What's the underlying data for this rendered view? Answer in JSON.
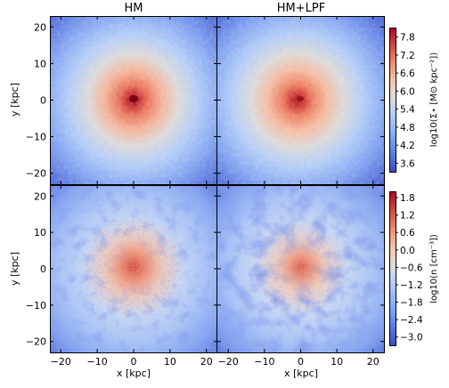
{
  "chart_data": [
    {
      "type": "heatmap",
      "panel": "top-left",
      "title": "HM",
      "quantity": "stellar surface density",
      "xlim": [
        -23,
        23
      ],
      "ylim": [
        -23,
        23
      ],
      "ylabel": "y [kpc]",
      "yticks": [
        -20,
        -10,
        0,
        10,
        20
      ],
      "center": [
        0,
        0
      ],
      "peak_log_sigma": 7.8,
      "edge_log_sigma": 3.5,
      "colors": {
        "core": "#b2182b",
        "edge": "#3e5fcf"
      }
    },
    {
      "type": "heatmap",
      "panel": "top-right",
      "title": "HM+LPF",
      "quantity": "stellar surface density",
      "xlim": [
        -23,
        23
      ],
      "ylim": [
        -23,
        23
      ],
      "center": [
        -1,
        0
      ],
      "peak_log_sigma": 7.6,
      "edge_log_sigma": 3.5,
      "colors": {
        "core": "#b2182b",
        "edge": "#3e5fcf"
      }
    },
    {
      "type": "heatmap",
      "panel": "bottom-left",
      "title": "",
      "quantity": "gas number density",
      "xlim": [
        -23,
        23
      ],
      "ylim": [
        -23,
        23
      ],
      "xlabel": "x [kpc]",
      "ylabel": "y [kpc]",
      "xticks": [
        -20,
        -10,
        0,
        10,
        20
      ],
      "yticks": [
        -20,
        -10,
        0,
        10,
        20
      ],
      "structure": "spiral gas disk",
      "log_n_range": [
        -3.3,
        2.0
      ]
    },
    {
      "type": "heatmap",
      "panel": "bottom-right",
      "title": "",
      "quantity": "gas number density",
      "xlim": [
        -23,
        23
      ],
      "ylim": [
        -23,
        23
      ],
      "xlabel": "x [kpc]",
      "xticks": [
        -20,
        -10,
        0,
        10,
        20
      ],
      "structure": "spiral gas disk, more diffuse",
      "log_n_range": [
        -3.3,
        2.0
      ]
    }
  ],
  "titles": {
    "left": "HM",
    "right": "HM+LPF"
  },
  "axes": {
    "xlabel": "x [kpc]",
    "ylabel": "y [kpc]",
    "ticks": [
      "-20",
      "−10",
      "0",
      "10",
      "20"
    ],
    "yticks": [
      "−20",
      "−10",
      "0",
      "10",
      "20"
    ],
    "xticks_left": [
      "−20",
      "−10",
      "0",
      "10",
      "20"
    ],
    "xticks_right": [
      "−20",
      "−10",
      "0",
      "10",
      "20"
    ]
  },
  "colorbars": {
    "top": {
      "label": "log10(Σ⋆ [M⊙ kpc⁻²])",
      "ticks": [
        "7.8",
        "7.2",
        "6.6",
        "6.0",
        "5.4",
        "4.8",
        "4.2",
        "3.6"
      ],
      "tick_values": [
        7.8,
        7.2,
        6.6,
        6.0,
        5.4,
        4.8,
        4.2,
        3.6
      ],
      "range": [
        3.3,
        8.1
      ]
    },
    "bottom": {
      "label": "log10(n [cm⁻³])",
      "ticks": [
        "1.8",
        "1.2",
        "0.6",
        "0.0",
        "−0.6",
        "−1.2",
        "−1.8",
        "−2.4",
        "−3.0"
      ],
      "tick_values": [
        1.8,
        1.2,
        0.6,
        0.0,
        -0.6,
        -1.2,
        -1.8,
        -2.4,
        -3.0
      ],
      "range": [
        -3.3,
        2.0
      ]
    },
    "colors": [
      "#3b4cc0",
      "#7396f5",
      "#b0cbfc",
      "#dddcdc",
      "#f6bfa6",
      "#ea7b60",
      "#c0282f",
      "#b40426"
    ]
  }
}
